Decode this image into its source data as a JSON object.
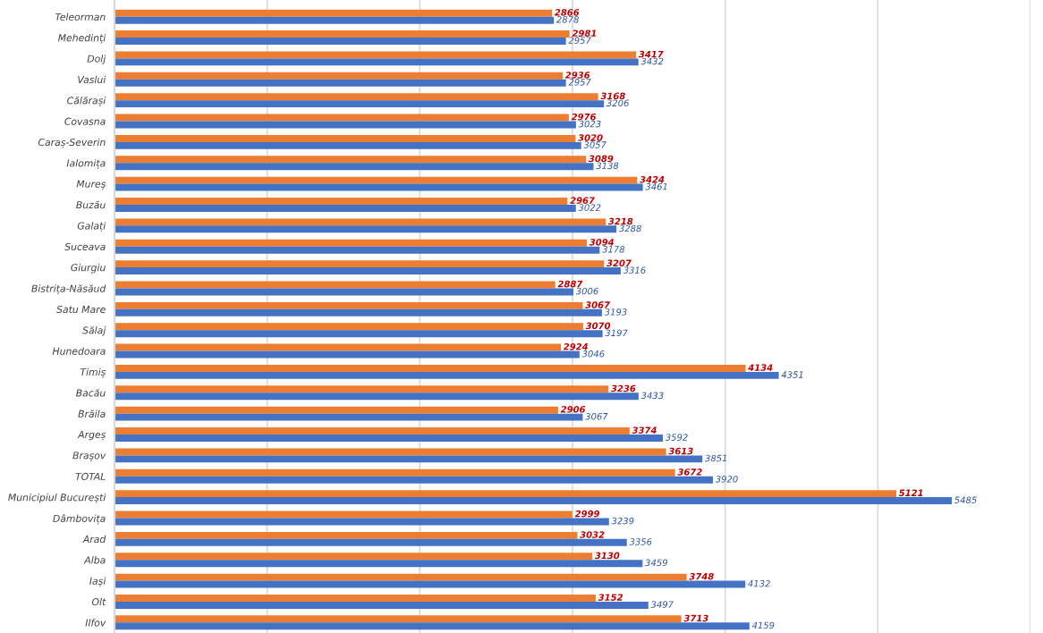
{
  "chart_data": {
    "type": "bar",
    "orientation": "horizontal",
    "categories": [
      "Teleorman",
      "Mehedinți",
      "Dolj",
      "Vaslui",
      "Călărași",
      "Covasna",
      "Caraș-Severin",
      "Ialomița",
      "Mureș",
      "Buzău",
      "Galați",
      "Suceava",
      "Giurgiu",
      "Bistrița-Năsăud",
      "Satu Mare",
      "Sălaj",
      "Hunedoara",
      "Timiș",
      "Bacău",
      "Brăila",
      "Argeș",
      "Brașov",
      "TOTAL",
      "Municipiul București",
      "Dâmbovița",
      "Arad",
      "Alba",
      "Iași",
      "Olt",
      "Ilfov"
    ],
    "series": [
      {
        "color": "#ed7d31",
        "values": [
          2866,
          2981,
          3417,
          2936,
          3168,
          2976,
          3020,
          3089,
          3424,
          2967,
          3218,
          3094,
          3207,
          2887,
          3067,
          3070,
          2924,
          4134,
          3236,
          2906,
          3374,
          3613,
          3672,
          5121,
          2999,
          3032,
          3130,
          3748,
          3152,
          3713
        ]
      },
      {
        "color": "#4472c4",
        "values": [
          2878,
          2957,
          3432,
          2957,
          3206,
          3023,
          3057,
          3138,
          3461,
          3022,
          3288,
          3178,
          3316,
          3006,
          3193,
          3197,
          3046,
          4351,
          3433,
          3067,
          3592,
          3851,
          3920,
          5485,
          3239,
          3356,
          3459,
          4132,
          3497,
          4159
        ]
      }
    ],
    "xlim": [
      0,
      6000
    ],
    "xticks": [
      {
        "value": 0,
        "label": null
      },
      {
        "value": 1000,
        "label": null
      },
      {
        "value": 2000,
        "label": null
      },
      {
        "value": 3000,
        "label": null
      },
      {
        "value": 4000,
        "label": null
      },
      {
        "value": 5000,
        "label": null
      },
      {
        "value": 6000,
        "label": null
      }
    ],
    "grid": "x",
    "tick_labels": "y",
    "data_labels": true
  }
}
